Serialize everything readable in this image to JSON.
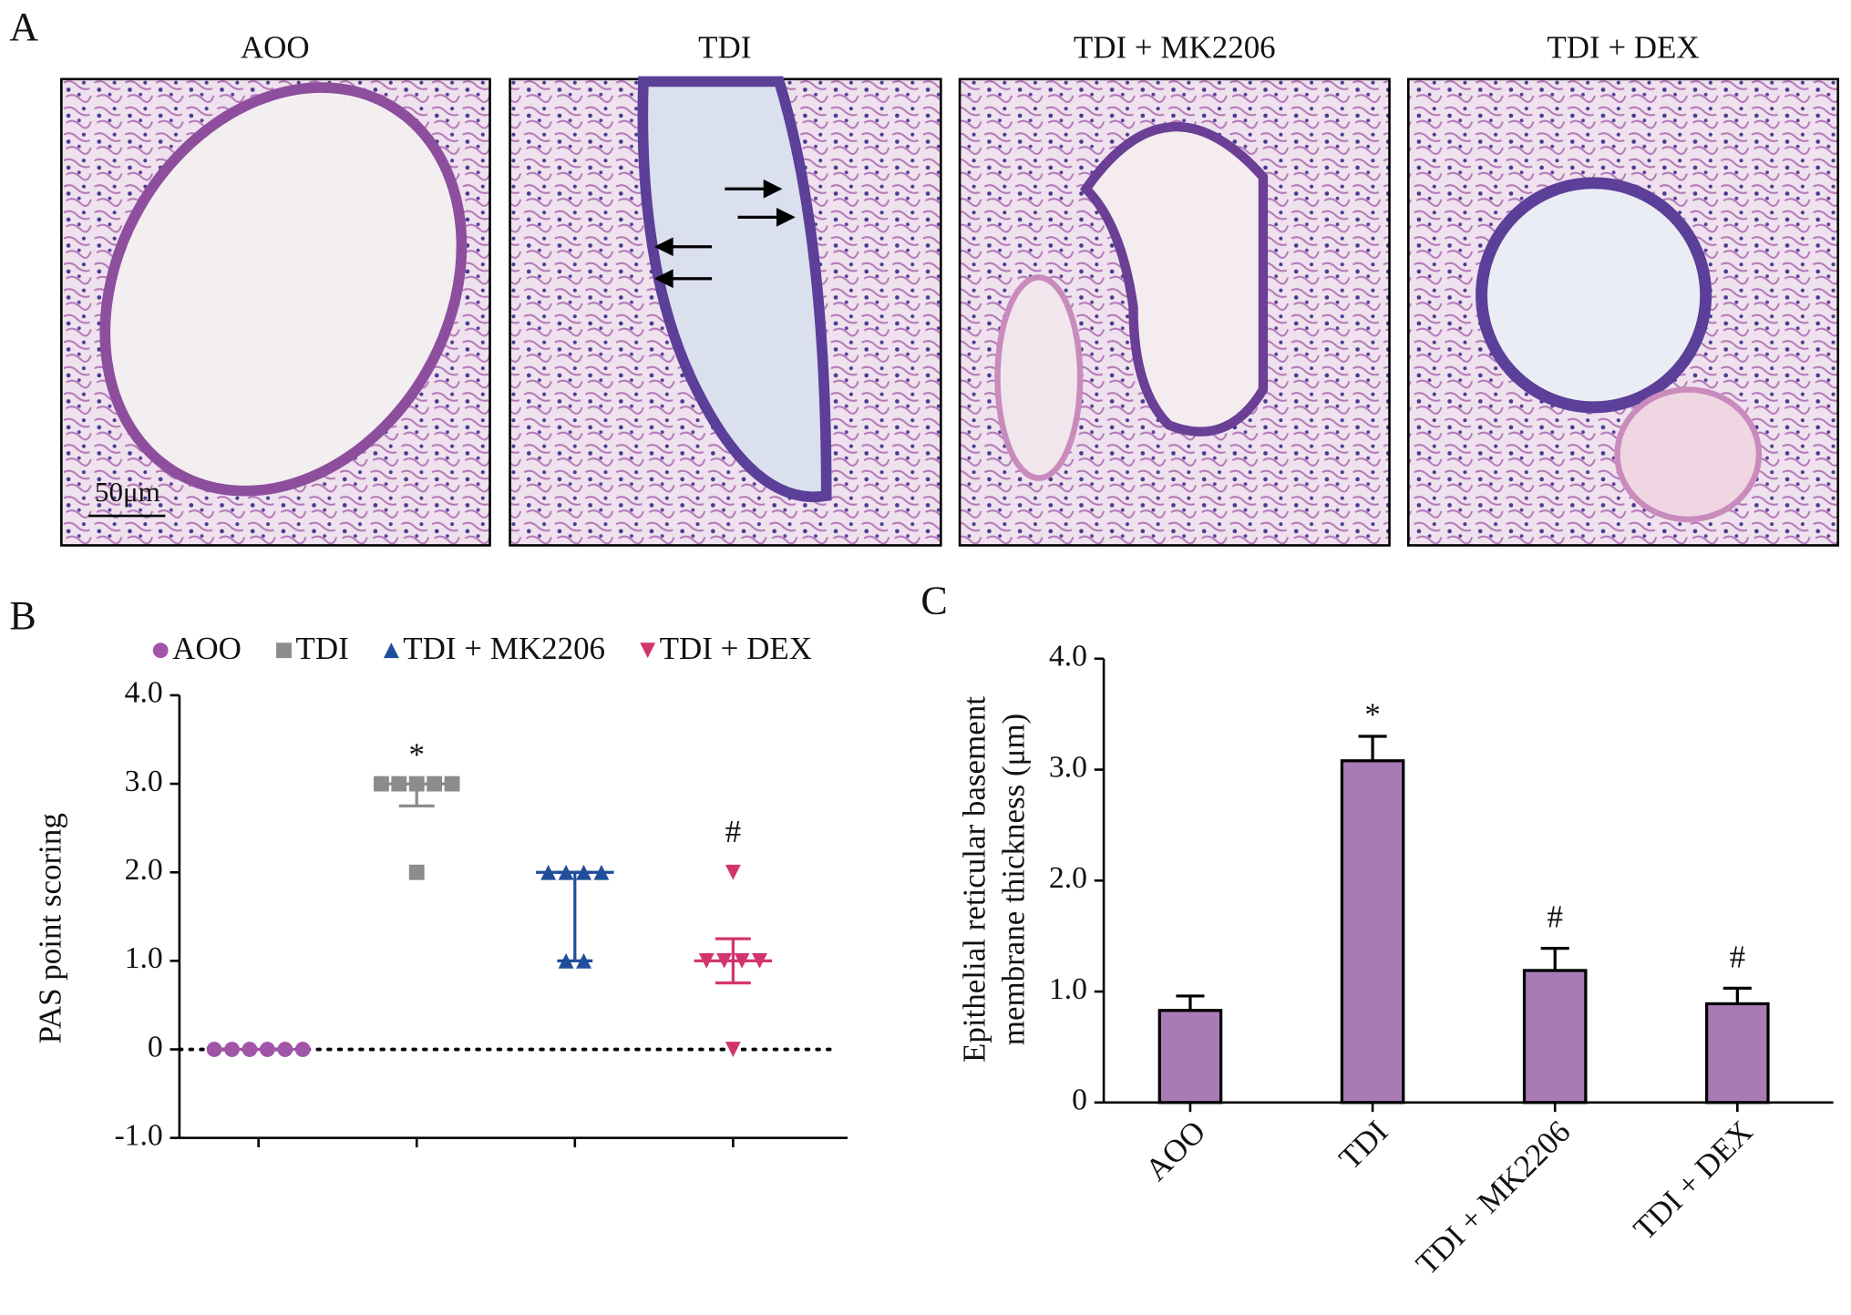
{
  "panel_a": {
    "label": "A",
    "titles": [
      "AOO",
      "TDI",
      "TDI + MK2206",
      "TDI + DEX"
    ],
    "scale_bar": "50μm"
  },
  "chart_data": [
    {
      "type": "dot",
      "panel_label": "B",
      "ylabel": "PAS point scoring",
      "ylim": [
        -1,
        4
      ],
      "yticks": [
        {
          "value": -1,
          "label": "-1.0"
        },
        0,
        {
          "value": 1,
          "label": "1.0"
        },
        {
          "value": 2,
          "label": "2.0"
        },
        {
          "value": 3,
          "label": "3.0"
        },
        {
          "value": 4,
          "label": "4.0"
        }
      ],
      "reference_line": 0,
      "series": [
        {
          "name": "AOO",
          "color": "#a155a8",
          "marker": "circle",
          "values": [
            0,
            0,
            0,
            0,
            0,
            0
          ],
          "median": 0,
          "q1": 0,
          "q3": 0,
          "annotation": null
        },
        {
          "name": "TDI",
          "color": "#8c8c8c",
          "marker": "square",
          "values": [
            3,
            3,
            3,
            3,
            3,
            2
          ],
          "median": 3,
          "q1": 2.75,
          "q3": 3,
          "annotation": "*"
        },
        {
          "name": "TDI + MK2206",
          "color": "#1f4e9c",
          "marker": "triangle-up",
          "values": [
            2,
            2,
            2,
            2,
            1,
            1
          ],
          "median": 2,
          "q1": 1,
          "q3": 2,
          "annotation": null
        },
        {
          "name": "TDI + DEX",
          "color": "#d2346e",
          "marker": "triangle-down",
          "values": [
            2,
            1,
            1,
            1,
            1,
            0
          ],
          "median": 1,
          "q1": 0.75,
          "q3": 1.25,
          "annotation": "#"
        }
      ]
    },
    {
      "type": "bar",
      "panel_label": "C",
      "ylabel": [
        "Epithelial reticular basement",
        "membrane thickness (μm)"
      ],
      "categories": [
        "AOO",
        "TDI",
        "TDI + MK2206",
        "TDI + DEX"
      ],
      "values": [
        0.83,
        3.08,
        1.19,
        0.89
      ],
      "errors": [
        0.13,
        0.22,
        0.2,
        0.14
      ],
      "annotations": [
        null,
        "*",
        "#",
        "#"
      ],
      "color": "#a87bb6",
      "ylim": [
        0,
        4
      ],
      "yticks": [
        0,
        {
          "value": 1,
          "label": "1.0"
        },
        {
          "value": 2,
          "label": "2.0"
        },
        {
          "value": 3,
          "label": "3.0"
        },
        {
          "value": 4,
          "label": "4.0"
        }
      ]
    }
  ]
}
